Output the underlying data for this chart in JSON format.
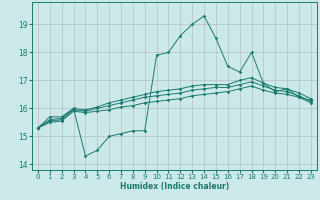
{
  "xlabel": "Humidex (Indice chaleur)",
  "background_color": "#cce9e9",
  "grid_color": "#aaaaaa",
  "line_color": "#1a7a6e",
  "xlim": [
    -0.5,
    23.5
  ],
  "ylim": [
    13.8,
    19.8
  ],
  "xticks": [
    0,
    1,
    2,
    3,
    4,
    5,
    6,
    7,
    8,
    9,
    10,
    11,
    12,
    13,
    14,
    15,
    16,
    17,
    18,
    19,
    20,
    21,
    22,
    23
  ],
  "yticks": [
    14,
    15,
    16,
    17,
    18,
    19
  ],
  "lines": [
    {
      "x": [
        0,
        1,
        2,
        3,
        4,
        5,
        6,
        7,
        8,
        9,
        10,
        11,
        12,
        13,
        14,
        15,
        16,
        17,
        18,
        19,
        20,
        21,
        22,
        23
      ],
      "y": [
        15.3,
        15.7,
        15.7,
        16.0,
        14.3,
        14.5,
        15.0,
        15.1,
        15.2,
        15.2,
        17.9,
        18.0,
        18.6,
        19.0,
        19.3,
        18.5,
        17.5,
        17.3,
        18.0,
        16.9,
        16.6,
        16.7,
        16.4,
        16.3
      ]
    },
    {
      "x": [
        0,
        1,
        2,
        3,
        4,
        5,
        6,
        7,
        8,
        9,
        10,
        11,
        12,
        13,
        14,
        15,
        16,
        17,
        18,
        19,
        20,
        21,
        22,
        23
      ],
      "y": [
        15.3,
        15.6,
        15.65,
        16.0,
        15.95,
        16.05,
        16.2,
        16.3,
        16.4,
        16.5,
        16.6,
        16.65,
        16.7,
        16.8,
        16.85,
        16.85,
        16.85,
        17.0,
        17.1,
        16.9,
        16.75,
        16.7,
        16.55,
        16.35
      ]
    },
    {
      "x": [
        0,
        1,
        2,
        3,
        4,
        5,
        6,
        7,
        8,
        9,
        10,
        11,
        12,
        13,
        14,
        15,
        16,
        17,
        18,
        19,
        20,
        21,
        22,
        23
      ],
      "y": [
        15.3,
        15.55,
        15.6,
        15.95,
        15.9,
        16.0,
        16.1,
        16.2,
        16.3,
        16.4,
        16.45,
        16.5,
        16.55,
        16.65,
        16.7,
        16.75,
        16.75,
        16.85,
        16.95,
        16.8,
        16.65,
        16.6,
        16.45,
        16.25
      ]
    },
    {
      "x": [
        0,
        1,
        2,
        3,
        4,
        5,
        6,
        7,
        8,
        9,
        10,
        11,
        12,
        13,
        14,
        15,
        16,
        17,
        18,
        19,
        20,
        21,
        22,
        23
      ],
      "y": [
        15.3,
        15.5,
        15.55,
        15.9,
        15.85,
        15.9,
        15.95,
        16.05,
        16.1,
        16.2,
        16.25,
        16.3,
        16.35,
        16.45,
        16.5,
        16.55,
        16.6,
        16.7,
        16.8,
        16.65,
        16.55,
        16.5,
        16.4,
        16.2
      ]
    }
  ]
}
